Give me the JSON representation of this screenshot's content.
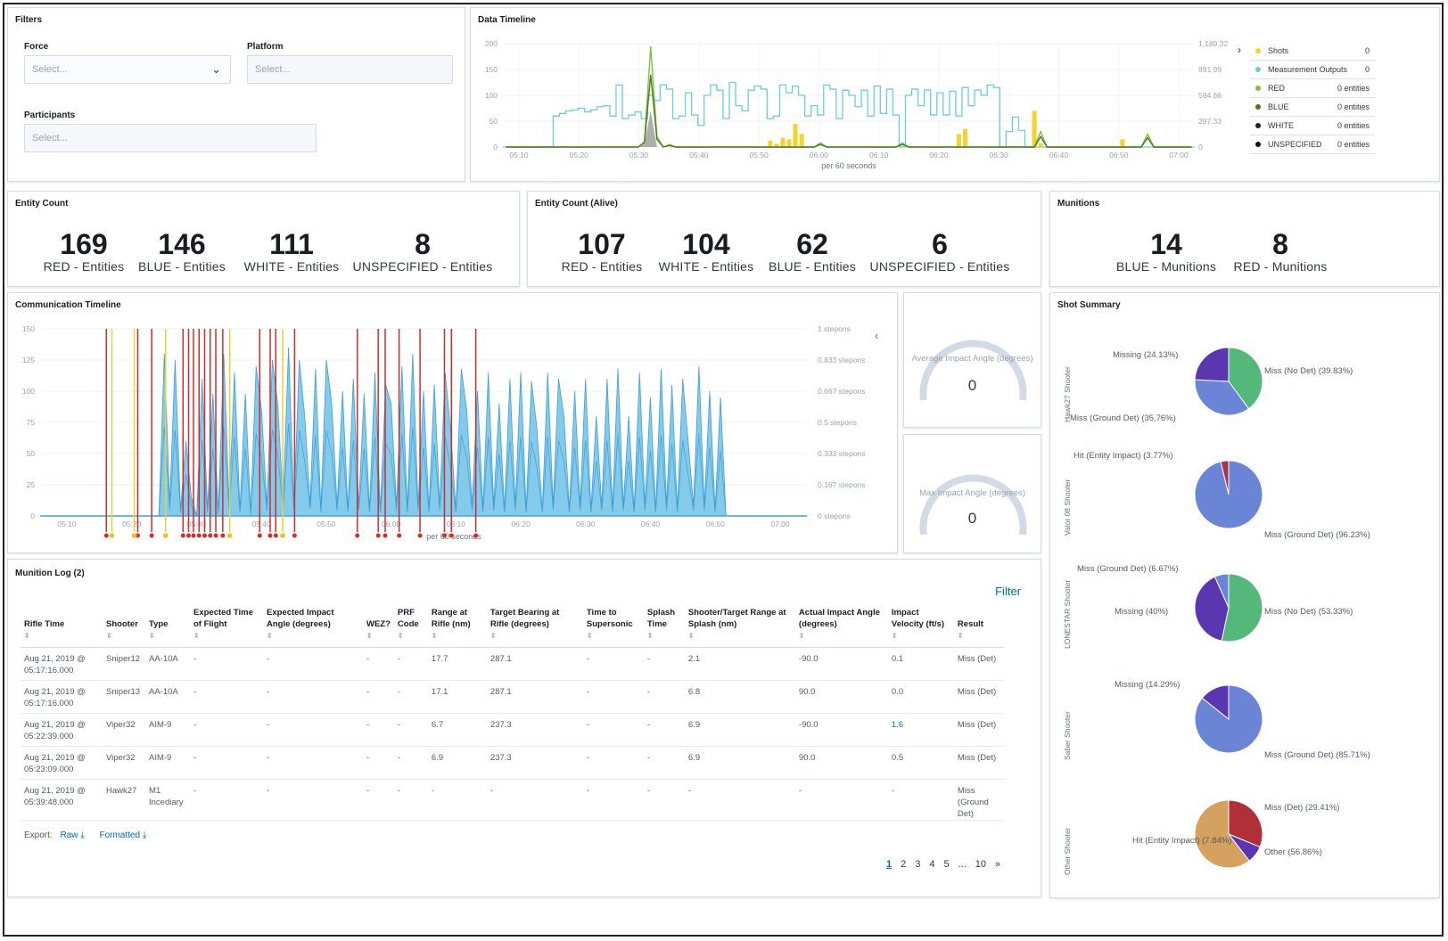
{
  "filters": {
    "title": "Filters",
    "force_label": "Force",
    "force_placeholder": "Select...",
    "platform_label": "Platform",
    "platform_placeholder": "Select...",
    "participants_label": "Participants",
    "participants_placeholder": "Select..."
  },
  "data_timeline": {
    "title": "Data Timeline",
    "x_caption": "per 60 seconds",
    "legend": [
      {
        "name": "Shots",
        "value": "0",
        "color": "#f5d32f"
      },
      {
        "name": "Measurement Outputs",
        "value": "0",
        "color": "#6dccd8"
      },
      {
        "name": "RED",
        "value": "0 entities",
        "color": "#7fbf3f"
      },
      {
        "name": "BLUE",
        "value": "0 entities",
        "color": "#4a7a1a"
      },
      {
        "name": "WHITE",
        "value": "0 entities",
        "color": "#222222"
      },
      {
        "name": "UNSPECIFIED",
        "value": "0 entities",
        "color": "#111111"
      }
    ],
    "legend_toggle": "›"
  },
  "entity_count": {
    "title": "Entity Count",
    "metrics": [
      {
        "value": "169",
        "label": "RED - Entities"
      },
      {
        "value": "146",
        "label": "BLUE - Entities"
      },
      {
        "value": "111",
        "label": "WHITE - Entities"
      },
      {
        "value": "8",
        "label": "UNSPECIFIED - Entities"
      }
    ]
  },
  "entity_count_alive": {
    "title": "Entity Count (Alive)",
    "metrics": [
      {
        "value": "107",
        "label": "RED - Entities"
      },
      {
        "value": "104",
        "label": "WHITE - Entities"
      },
      {
        "value": "62",
        "label": "BLUE - Entities"
      },
      {
        "value": "6",
        "label": "UNSPECIFIED - Entities"
      }
    ]
  },
  "munitions": {
    "title": "Munitions",
    "metrics": [
      {
        "value": "14",
        "label": "BLUE - Munitions"
      },
      {
        "value": "8",
        "label": "RED - Munitions"
      }
    ]
  },
  "comm_timeline": {
    "title": "Communication Timeline",
    "x_caption": "per 60 seconds",
    "collapse": "‹"
  },
  "gauges": [
    {
      "label": "Average Impact Angle (degrees)",
      "value": "0"
    },
    {
      "label": "Max Impact Angle (degrees)",
      "value": "0"
    }
  ],
  "shot_summary": {
    "title": "Shot Summary",
    "pies": [
      {
        "shooter": "Hawk27 Shooter",
        "slices": [
          {
            "label": "Miss (No Det) (39.83%)",
            "value": 39.83,
            "color": "#54b87a"
          },
          {
            "label": "Miss (Ground Det) (35.76%)",
            "value": 35.76,
            "color": "#6a85d6"
          },
          {
            "label": "Missing (24.13%)",
            "value": 24.13,
            "color": "#5a36b0"
          }
        ]
      },
      {
        "shooter": "Valor 08 Shooter",
        "slices": [
          {
            "label": "Miss (Ground Det) (96.23%)",
            "value": 96.23,
            "color": "#6a85d6"
          },
          {
            "label": "Hit (Entity Impact) (3.77%)",
            "value": 3.77,
            "color": "#a3354f"
          }
        ]
      },
      {
        "shooter": "LONESTAR Shooter",
        "slices": [
          {
            "label": "Miss (No Det) (53.33%)",
            "value": 53.33,
            "color": "#54b87a"
          },
          {
            "label": "Missing (40%)",
            "value": 40,
            "color": "#5a36b0"
          },
          {
            "label": "Miss (Ground Det) (6.67%)",
            "value": 6.67,
            "color": "#6a85d6"
          }
        ]
      },
      {
        "shooter": "Saber Shooter",
        "slices": [
          {
            "label": "Miss (Ground Det) (85.71%)",
            "value": 85.71,
            "color": "#6a85d6"
          },
          {
            "label": "Missing (14.29%)",
            "value": 14.29,
            "color": "#5a36b0"
          }
        ]
      },
      {
        "shooter": "Other Shooter",
        "slices": [
          {
            "label": "Miss (Det) (29.41%)",
            "value": 29.41,
            "color": "#b0303a"
          },
          {
            "label": "Hit (Entity Impact) (7.84%)",
            "value": 7.84,
            "color": "#5a36b0"
          },
          {
            "label": "Other (56.86%)",
            "value": 56.86,
            "color": "#d4a25e"
          }
        ]
      }
    ]
  },
  "munition_log": {
    "title": "Munition Log (2)",
    "filter_label": "Filter",
    "columns": [
      "Rifle Time",
      "Shooter",
      "Type",
      "Expected Time of Flight",
      "Expected Impact Angle (degrees)",
      "WEZ?",
      "PRF Code",
      "Range at Rifle (nm)",
      "Target Bearing at Rifle (degrees)",
      "Time to Supersonic",
      "Splash Time",
      "Shooter/Target Range at Splash (nm)",
      "Actual Impact Angle (degrees)",
      "Impact Velocity (ft/s)",
      "Result"
    ],
    "rows": [
      [
        "Aug 21, 2019 @ 05:17:16.000",
        "Sniper12",
        "AA-10A",
        "-",
        "-",
        "-",
        "-",
        "17.7",
        "287.1",
        "-",
        "-",
        "2.1",
        "-90.0",
        "0.1",
        "Miss (Det)"
      ],
      [
        "Aug 21, 2019 @ 05:17:16.000",
        "Sniper13",
        "AA-10A",
        "-",
        "-",
        "-",
        "-",
        "17.1",
        "287.1",
        "-",
        "-",
        "6.8",
        "90.0",
        "0.0",
        "Miss (Det)"
      ],
      [
        "Aug 21, 2019 @ 05:22:39.000",
        "Viper32",
        "AIM-9",
        "-",
        "-",
        "-",
        "-",
        "6.7",
        "237.3",
        "-",
        "-",
        "6.9",
        "-90.0",
        "1.6",
        "Miss (Det)"
      ],
      [
        "Aug 21, 2019 @ 05:23:09.000",
        "Viper32",
        "AIM-9",
        "-",
        "-",
        "-",
        "-",
        "6.9",
        "237.3",
        "-",
        "-",
        "6.9",
        "90.0",
        "0.5",
        "Miss (Det)"
      ],
      [
        "Aug 21, 2019 @ 05:39:48.000",
        "Hawk27",
        "M1 Incediary",
        "-",
        "-",
        "-",
        "-",
        "-",
        "-",
        "-",
        "-",
        "-",
        "-",
        "-",
        "Miss (Ground Det)"
      ]
    ],
    "export_label": "Export:",
    "export_raw": "Raw",
    "export_formatted": "Formatted",
    "pages": [
      "1",
      "2",
      "3",
      "4",
      "5",
      "...",
      "10",
      "»"
    ]
  },
  "chart_data": [
    {
      "type": "line",
      "title": "Data Timeline",
      "xlabel": "per 60 seconds",
      "x_ticks": [
        "05:10",
        "05:20",
        "05:30",
        "05:40",
        "05:50",
        "06:00",
        "06:10",
        "06:20",
        "06:30",
        "06:40",
        "06:50",
        "07:00"
      ],
      "y_left_ticks": [
        0,
        50,
        100,
        150,
        200
      ],
      "y_right_ticks": [
        "0",
        "297.33",
        "594.66",
        "891.99",
        "1,189.32"
      ],
      "ylim": [
        0,
        200
      ],
      "series": [
        {
          "name": "Measurement Outputs",
          "color": "#6dccd8",
          "step": true,
          "values": [
            0,
            0,
            0,
            0,
            0,
            0,
            0,
            0,
            60,
            65,
            70,
            72,
            75,
            68,
            72,
            78,
            80,
            60,
            120,
            55,
            62,
            68,
            55,
            100,
            90,
            120,
            112,
            55,
            60,
            105,
            62,
            42,
            100,
            120,
            110,
            55,
            125,
            80,
            70,
            110,
            118,
            112,
            55,
            60,
            120,
            105,
            118,
            100,
            60,
            80,
            62,
            120,
            112,
            55,
            110,
            100,
            78,
            110,
            60,
            118,
            65,
            112,
            62,
            0,
            100,
            112,
            80,
            110,
            62,
            105,
            62,
            108,
            60,
            115,
            80,
            110,
            100,
            120,
            115,
            0,
            30,
            58,
            32,
            0,
            0,
            0,
            0,
            0,
            0,
            0,
            0,
            0,
            0,
            0,
            0,
            0,
            0,
            0,
            0,
            0,
            0,
            0,
            0,
            0,
            0,
            0,
            0,
            0,
            0,
            0
          ]
        },
        {
          "name": "Shots",
          "color": "#f5d32f",
          "bar": true,
          "values": [
            0,
            0,
            0,
            0,
            0,
            0,
            0,
            0,
            0,
            0,
            0,
            0,
            0,
            0,
            0,
            0,
            0,
            0,
            0,
            0,
            0,
            0,
            0,
            0,
            0,
            0,
            0,
            0,
            0,
            0,
            0,
            0,
            0,
            0,
            0,
            0,
            0,
            0,
            0,
            0,
            0,
            0,
            12,
            6,
            18,
            15,
            45,
            25,
            0,
            0,
            0,
            0,
            0,
            0,
            0,
            0,
            0,
            0,
            0,
            0,
            0,
            0,
            0,
            0,
            0,
            0,
            0,
            0,
            0,
            0,
            0,
            0,
            25,
            35,
            0,
            0,
            0,
            0,
            0,
            0,
            0,
            0,
            0,
            0,
            70,
            8,
            0,
            0,
            0,
            0,
            0,
            0,
            0,
            0,
            0,
            0,
            0,
            0,
            15,
            0,
            0,
            0,
            0,
            0,
            0,
            0,
            0,
            0,
            0,
            0,
            0,
            0,
            0
          ]
        },
        {
          "name": "RED",
          "color": "#7fbf3f",
          "values": [
            0,
            0,
            0,
            0,
            0,
            0,
            0,
            0,
            0,
            0,
            0,
            0,
            0,
            0,
            0,
            0,
            0,
            0,
            0,
            0,
            0,
            0,
            10,
            195,
            20,
            0,
            5,
            0,
            0,
            0,
            0,
            0,
            0,
            0,
            0,
            0,
            0,
            0,
            0,
            0,
            0,
            0,
            0,
            0,
            0,
            0,
            0,
            0,
            0,
            0,
            8,
            0,
            0,
            0,
            0,
            0,
            0,
            0,
            0,
            0,
            0,
            0,
            0,
            8,
            0,
            0,
            0,
            0,
            0,
            0,
            0,
            0,
            0,
            0,
            0,
            0,
            0,
            0,
            0,
            0,
            0,
            0,
            0,
            0,
            0,
            30,
            0,
            0,
            0,
            0,
            0,
            0,
            0,
            0,
            0,
            0,
            0,
            0,
            0,
            0,
            0,
            0,
            25,
            0,
            0,
            0,
            0,
            0,
            0,
            0
          ]
        },
        {
          "name": "BLUE",
          "color": "#4a7a1a",
          "values": [
            0,
            0,
            0,
            0,
            0,
            0,
            0,
            0,
            0,
            0,
            0,
            0,
            0,
            0,
            0,
            0,
            0,
            0,
            0,
            0,
            0,
            0,
            8,
            140,
            15,
            0,
            3,
            0,
            0,
            0,
            0,
            0,
            0,
            0,
            0,
            0,
            0,
            0,
            0,
            0,
            0,
            0,
            0,
            0,
            0,
            0,
            0,
            0,
            0,
            0,
            5,
            0,
            0,
            0,
            0,
            0,
            0,
            0,
            0,
            0,
            0,
            0,
            0,
            5,
            0,
            0,
            0,
            0,
            0,
            0,
            0,
            0,
            0,
            0,
            0,
            0,
            0,
            0,
            0,
            0,
            0,
            0,
            0,
            0,
            0,
            20,
            0,
            0,
            0,
            0,
            0,
            0,
            0,
            0,
            0,
            0,
            0,
            0,
            0,
            0,
            0,
            0,
            18,
            0,
            0,
            0,
            0,
            0,
            0,
            0
          ]
        },
        {
          "name": "WHITE",
          "color": "#9a9a9a",
          "area": true,
          "values": [
            0,
            0,
            0,
            0,
            0,
            0,
            0,
            0,
            0,
            0,
            0,
            0,
            0,
            0,
            0,
            0,
            0,
            0,
            0,
            0,
            0,
            0,
            5,
            70,
            0,
            0,
            0,
            0,
            0,
            0,
            0,
            0,
            0,
            0,
            0,
            0,
            0,
            0,
            0,
            0,
            0,
            0,
            0,
            0,
            0,
            0,
            0,
            0,
            0,
            0,
            0,
            0,
            0,
            0,
            0,
            0,
            0,
            0,
            0,
            0,
            0,
            0,
            0,
            0,
            0,
            0,
            0,
            0,
            0,
            0,
            0,
            0,
            0,
            0,
            0,
            0,
            0,
            0,
            0,
            0,
            0,
            0,
            0,
            0,
            0,
            0,
            0,
            0,
            0,
            0,
            0,
            0,
            0,
            0,
            0,
            0,
            0,
            0,
            0,
            0,
            0,
            0,
            0,
            0,
            0,
            0,
            0,
            0,
            0,
            0
          ]
        }
      ]
    },
    {
      "type": "area",
      "title": "Communication Timeline",
      "xlabel": "per 60 seconds",
      "x_ticks": [
        "05:10",
        "05:20",
        "05:30",
        "05:40",
        "05:50",
        "06:00",
        "06:10",
        "06:20",
        "06:30",
        "06:40",
        "06:50",
        "07:00"
      ],
      "y_left_ticks": [
        0,
        25,
        50,
        75,
        100,
        125,
        150
      ],
      "y_right_ticks": [
        "0 stepons",
        "0.167 stepons",
        "0.333 stepons",
        "0.5 stepons",
        "0.667 stepons",
        "0.833 stepons",
        "1 stepons"
      ],
      "ylim": [
        0,
        150
      ],
      "values": [
        0,
        0,
        0,
        0,
        0,
        0,
        0,
        0,
        0,
        0,
        0,
        0,
        0,
        0,
        0,
        0,
        0,
        0,
        0,
        0,
        0,
        0,
        0,
        130,
        10,
        125,
        5,
        60,
        15,
        0,
        110,
        5,
        98,
        3,
        130,
        10,
        115,
        5,
        98,
        3,
        120,
        85,
        8,
        125,
        90,
        10,
        135,
        8,
        125,
        80,
        10,
        118,
        5,
        125,
        90,
        8,
        100,
        5,
        110,
        8,
        98,
        5,
        115,
        5,
        105,
        90,
        8,
        120,
        5,
        130,
        8,
        100,
        5,
        105,
        8,
        115,
        70,
        5,
        118,
        85,
        8,
        100,
        5,
        115,
        8,
        90,
        5,
        110,
        8,
        115,
        5,
        108,
        70,
        5,
        115,
        8,
        110,
        80,
        5,
        100,
        8,
        110,
        5,
        80,
        8,
        110,
        5,
        118,
        8,
        80,
        5,
        115,
        8,
        95,
        5,
        118,
        8,
        105,
        5,
        110,
        60,
        8,
        120,
        8,
        100,
        5,
        95,
        0,
        0,
        0,
        0,
        0,
        0,
        0,
        0,
        0,
        0,
        0,
        0,
        0,
        0,
        0,
        0
      ],
      "red_markers": [
        9.5,
        14.0,
        16.0,
        20.5,
        21.3,
        22.0,
        22.8,
        23.6,
        24.4,
        25.2,
        26.2,
        31.5,
        33.0,
        33.8,
        36.5,
        45.5,
        48.5,
        49.5,
        51.5,
        54.5,
        58.0,
        59.0,
        62.5
      ],
      "yellow_markers": [
        10.3,
        13.5,
        18.0,
        27.2,
        34.8
      ]
    }
  ]
}
